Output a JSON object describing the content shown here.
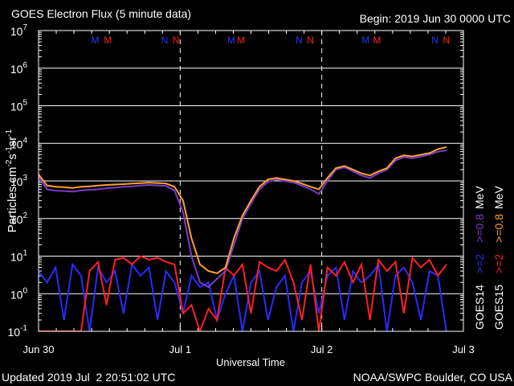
{
  "chart_data": {
    "type": "line",
    "title": "GOES Electron Flux (5 minute data)",
    "subtitle": "Begin: 2019 Jun 30 0000 UTC",
    "xlabel": "Universal Time",
    "ylabel": [
      {
        "text": "Particles cm"
      },
      {
        "sup": "-2"
      },
      {
        "text": "s"
      },
      {
        "sup": "-1"
      },
      {
        "text": "sr"
      },
      {
        "sup": "-1"
      }
    ],
    "footer_left": "Updated 2019 Jul  2 20:51:02 UTC",
    "footer_right": "NOAA/SWPC Boulder, CO USA",
    "log_y": true,
    "grid": true,
    "xgrid": "dashed",
    "threshold": 1000,
    "background": "#000000",
    "xlim": [
      0,
      3
    ],
    "xticks": [
      {
        "value": 0,
        "label": "Jun 30"
      },
      {
        "value": 1,
        "label": "Jul 1"
      },
      {
        "value": 2,
        "label": "Jul 2"
      },
      {
        "value": 3,
        "label": "Jul 3"
      }
    ],
    "ylim": [
      0.1,
      10000000
    ],
    "yticks": [
      {
        "value": 0.1,
        "label": "10",
        "exponent": "-1"
      },
      {
        "value": 1,
        "label": "10",
        "exponent": "0"
      },
      {
        "value": 10,
        "label": "10",
        "exponent": "1"
      },
      {
        "value": 100,
        "label": "10",
        "exponent": "2"
      },
      {
        "value": 1000,
        "label": "10",
        "exponent": "3"
      },
      {
        "value": 10000,
        "label": "10",
        "exponent": "4"
      },
      {
        "value": 100000,
        "label": "10",
        "exponent": "5"
      },
      {
        "value": 1000000,
        "label": "10",
        "exponent": "6"
      },
      {
        "value": 10000000,
        "label": "10",
        "exponent": "7"
      }
    ],
    "markers": [
      {
        "x": 0.4,
        "label": "M",
        "color": "#3030ff"
      },
      {
        "x": 0.49,
        "label": "M",
        "color": "#ff2020"
      },
      {
        "x": 0.89,
        "label": "N",
        "color": "#3030ff"
      },
      {
        "x": 0.97,
        "label": "N",
        "color": "#ff2020"
      },
      {
        "x": 1.36,
        "label": "M",
        "color": "#3030ff"
      },
      {
        "x": 1.43,
        "label": "M",
        "color": "#ff2020"
      },
      {
        "x": 1.84,
        "label": "N",
        "color": "#3030ff"
      },
      {
        "x": 1.92,
        "label": "N",
        "color": "#ff2020"
      },
      {
        "x": 2.31,
        "label": "M",
        "color": "#3030ff"
      },
      {
        "x": 2.39,
        "label": "M",
        "color": "#ff2020"
      },
      {
        "x": 2.8,
        "label": "N",
        "color": "#3030ff"
      },
      {
        "x": 2.88,
        "label": "N",
        "color": "#ff2020"
      }
    ],
    "legend_unit": "MeV",
    "legend_groups": [
      "GOES14",
      "GOES15"
    ],
    "x": [
      0,
      0.06,
      0.12,
      0.18,
      0.24,
      0.3,
      0.36,
      0.42,
      0.48,
      0.54,
      0.6,
      0.66,
      0.72,
      0.78,
      0.84,
      0.9,
      0.96,
      1.02,
      1.08,
      1.14,
      1.2,
      1.26,
      1.32,
      1.38,
      1.44,
      1.5,
      1.56,
      1.62,
      1.68,
      1.74,
      1.8,
      1.86,
      1.92,
      1.98,
      2.04,
      2.1,
      2.16,
      2.22,
      2.28,
      2.34,
      2.4,
      2.46,
      2.52,
      2.58,
      2.64,
      2.7,
      2.76,
      2.82,
      2.88
    ],
    "series": [
      {
        "name": ">=2",
        "group": 0,
        "color": "#2a2aff",
        "values": [
          4,
          2,
          5,
          0.2,
          6,
          3,
          0.1,
          5,
          2,
          4,
          0.3,
          6,
          3,
          5,
          0.2,
          4,
          2,
          0.3,
          3,
          1.5,
          2,
          0.2,
          1,
          3,
          0.1,
          2,
          4,
          0.2,
          1.5,
          3,
          0.1,
          2,
          4,
          0.3,
          3,
          5,
          0.2,
          4,
          2,
          3,
          6,
          0.1,
          3,
          5,
          2,
          0.2,
          4,
          3,
          0.1
        ]
      },
      {
        "name": ">=2",
        "group": 1,
        "color": "#ff2020",
        "values": [
          0.1,
          0.1,
          0.1,
          0.1,
          0.1,
          0.1,
          4,
          7,
          0.5,
          8,
          9,
          6,
          10,
          8,
          9,
          7,
          6,
          0.3,
          0.5,
          0.1,
          0.4,
          0.2,
          5,
          3,
          6,
          0.3,
          7,
          5,
          4,
          8,
          2,
          0.2,
          6,
          0.1,
          5,
          3,
          7,
          2,
          6,
          0.2,
          8,
          4,
          7,
          0.3,
          9,
          5,
          8,
          3,
          6
        ]
      },
      {
        "name": ">=0.8",
        "group": 0,
        "color": "#7a3cc8",
        "values": [
          1300,
          600,
          550,
          540,
          520,
          560,
          580,
          600,
          640,
          660,
          700,
          720,
          750,
          780,
          760,
          740,
          550,
          150,
          10,
          2,
          1.5,
          2.5,
          4,
          20,
          100,
          250,
          600,
          950,
          1100,
          1000,
          900,
          750,
          600,
          450,
          1000,
          2000,
          2300,
          1800,
          1400,
          1200,
          1600,
          2000,
          3500,
          4300,
          4000,
          4500,
          5000,
          6000,
          6500
        ]
      },
      {
        "name": ">=0.8",
        "group": 1,
        "color": "#ffa030",
        "values": [
          1500,
          750,
          700,
          680,
          650,
          700,
          720,
          750,
          780,
          800,
          820,
          850,
          870,
          900,
          880,
          850,
          700,
          300,
          30,
          6,
          4,
          3.5,
          5,
          30,
          120,
          300,
          700,
          1100,
          1200,
          1100,
          1000,
          850,
          700,
          600,
          1200,
          2200,
          2500,
          2000,
          1600,
          1400,
          1800,
          2200,
          4000,
          4800,
          4500,
          5000,
          5500,
          7000,
          8000
        ]
      }
    ]
  }
}
